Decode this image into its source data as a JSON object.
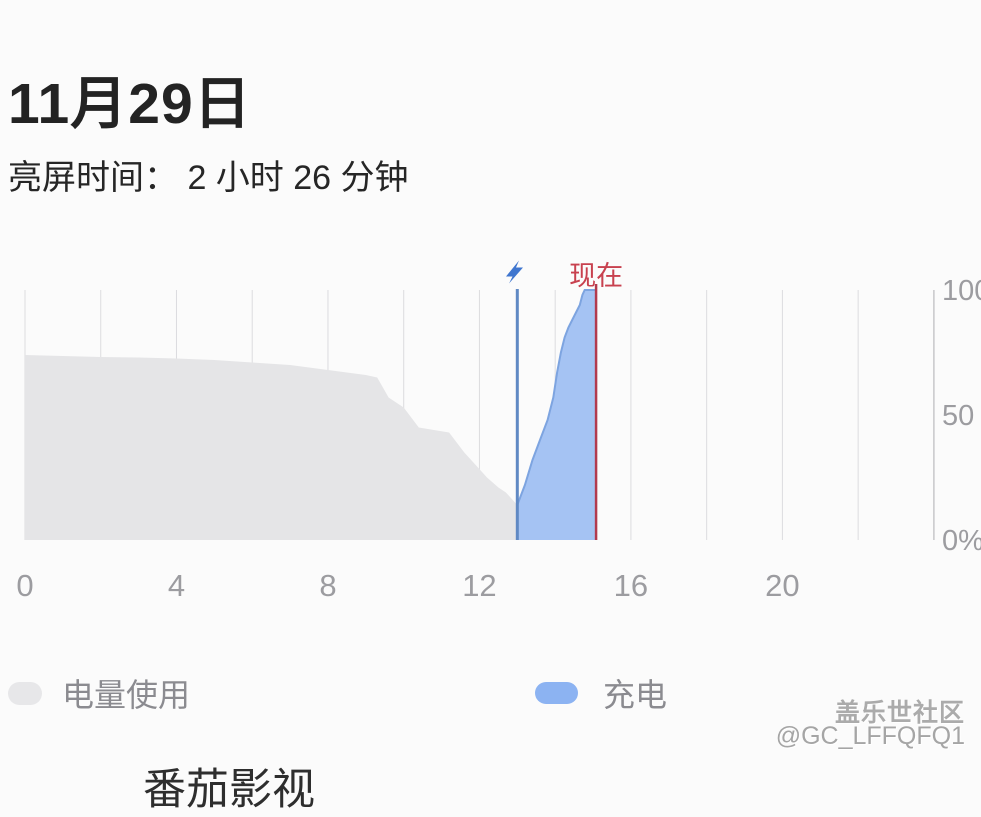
{
  "header": {
    "date_title": "11月29日",
    "screen_on_time": "亮屏时间： 2 小时 26 分钟"
  },
  "chart_data": {
    "type": "area",
    "title": "",
    "xlabel": "",
    "ylabel": "",
    "x_range": [
      0,
      24
    ],
    "x_ticks": [
      0,
      4,
      8,
      12,
      16,
      20
    ],
    "y_range": [
      0,
      100
    ],
    "y_ticks": [
      100,
      50,
      0
    ],
    "y_tick_labels": [
      "100",
      "50",
      "0%"
    ],
    "grid": "vertical lines every 2 hours, right axis line",
    "legend_position": "bottom",
    "series": [
      {
        "name": "电量使用",
        "color": "#e5e5e7",
        "points": [
          [
            0,
            74
          ],
          [
            1,
            73.6
          ],
          [
            2,
            73.2
          ],
          [
            3,
            73
          ],
          [
            4,
            72.6
          ],
          [
            5,
            72
          ],
          [
            6,
            71
          ],
          [
            7,
            70
          ],
          [
            8,
            68
          ],
          [
            9,
            66
          ],
          [
            9.3,
            65
          ],
          [
            9.6,
            57
          ],
          [
            10,
            53
          ],
          [
            10.4,
            45
          ],
          [
            11.2,
            43
          ],
          [
            11.6,
            35
          ],
          [
            11.9,
            30
          ],
          [
            12.2,
            25
          ],
          [
            12.5,
            21
          ],
          [
            12.7,
            19
          ],
          [
            13,
            14
          ]
        ]
      },
      {
        "name": "充电",
        "color": "#a5c3f3",
        "edge_color": "#7da4e0",
        "points": [
          [
            13,
            14
          ],
          [
            13.2,
            22
          ],
          [
            13.4,
            32
          ],
          [
            13.6,
            40
          ],
          [
            13.8,
            48
          ],
          [
            13.95,
            57
          ],
          [
            14.05,
            67
          ],
          [
            14.15,
            75
          ],
          [
            14.25,
            81
          ],
          [
            14.35,
            85
          ],
          [
            14.45,
            88
          ],
          [
            14.55,
            91
          ],
          [
            14.65,
            94
          ],
          [
            14.72,
            98
          ],
          [
            14.78,
            100
          ],
          [
            15.08,
            100
          ]
        ]
      }
    ],
    "markers": {
      "charge_start_hour": 13,
      "charge_start_color": "#6089c4",
      "bolt_color": "#3f76cf",
      "now_hour": 15.08,
      "now_label": "现在",
      "now_color": "#b23a4e"
    },
    "grid_color": "#dcdcdf",
    "axis_color": "#c7c7ca"
  },
  "legend": [
    {
      "label": "电量使用",
      "color": "#e7e7e9"
    },
    {
      "label": "充电",
      "color": "#8cb3f2"
    }
  ],
  "watermark": {
    "line1": "盖乐世社区",
    "line2": "@GC_LFFQFQ1"
  },
  "bottom_row": {
    "app_name": "番茄影视"
  }
}
